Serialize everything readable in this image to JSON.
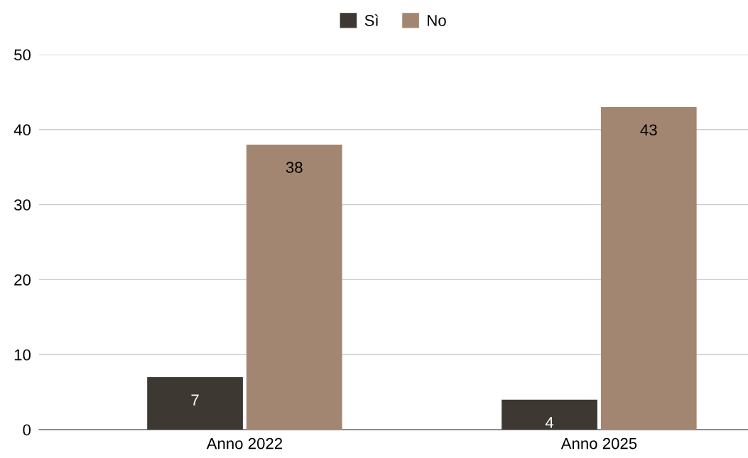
{
  "chart_data": {
    "type": "bar",
    "categories": [
      "Anno 2022",
      "Anno 2025"
    ],
    "series": [
      {
        "name": "Sì",
        "color": "#3d3832",
        "values": [
          7,
          4
        ]
      },
      {
        "name": "No",
        "color": "#a38671",
        "values": [
          38,
          43
        ]
      }
    ],
    "ylim": [
      0,
      50
    ],
    "yticks": [
      0,
      10,
      20,
      30,
      40,
      50
    ],
    "grid": "y",
    "legend": "top",
    "data_labels": true
  }
}
